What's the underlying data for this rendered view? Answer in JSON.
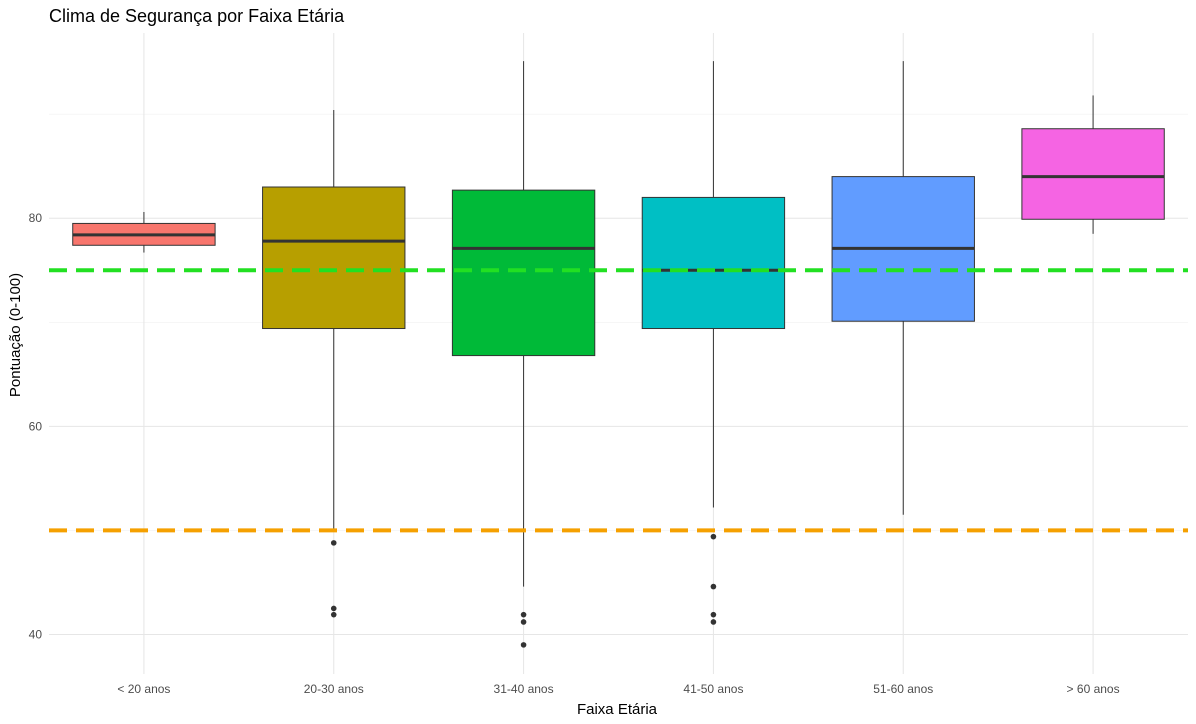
{
  "chart_data": {
    "type": "boxplot",
    "title": "Clima de Segurança por Faixa Etária",
    "xlabel": "Faixa Etária",
    "ylabel": "Pontuação (0-100)",
    "ylim": [
      36.2,
      97.8
    ],
    "yticks": [
      40,
      60,
      80
    ],
    "grid": true,
    "legend": "none",
    "categories": [
      "< 20 anos",
      "20-30 anos",
      "31-40 anos",
      "41-50 anos",
      "51-60 anos",
      "> 60 anos"
    ],
    "boxes": [
      {
        "category": "< 20 anos",
        "color": "#F8766D",
        "whisker_low": 76.7,
        "q1": 77.4,
        "median": 78.4,
        "q3": 79.5,
        "whisker_high": 80.6,
        "outliers": []
      },
      {
        "category": "20-30 anos",
        "color": "#B79F00",
        "whisker_low": 50.1,
        "q1": 69.4,
        "median": 77.8,
        "q3": 83.0,
        "whisker_high": 90.4,
        "outliers": [
          48.8,
          42.5,
          41.9
        ]
      },
      {
        "category": "31-40 anos",
        "color": "#00BA38",
        "whisker_low": 44.6,
        "q1": 66.8,
        "median": 77.1,
        "q3": 82.7,
        "whisker_high": 95.1,
        "outliers": [
          41.9,
          41.2,
          39.0
        ]
      },
      {
        "category": "41-50 anos",
        "color": "#00BFC4",
        "whisker_low": 52.2,
        "q1": 69.4,
        "median": 75.0,
        "q3": 82.0,
        "whisker_high": 95.1,
        "outliers": [
          49.4,
          44.6,
          41.9,
          41.2
        ]
      },
      {
        "category": "51-60 anos",
        "color": "#619CFF",
        "whisker_low": 51.5,
        "q1": 70.1,
        "median": 77.1,
        "q3": 84.0,
        "whisker_high": 95.1,
        "outliers": []
      },
      {
        "category": "> 60 anos",
        "color": "#F564E3",
        "whisker_low": 78.5,
        "q1": 79.9,
        "median": 84.0,
        "q3": 88.6,
        "whisker_high": 91.8,
        "outliers": []
      }
    ],
    "reference_lines": [
      {
        "value": 75,
        "color": "#22E022",
        "style": "dashed"
      },
      {
        "value": 50,
        "color": "#F5A000",
        "style": "dashed"
      }
    ]
  }
}
